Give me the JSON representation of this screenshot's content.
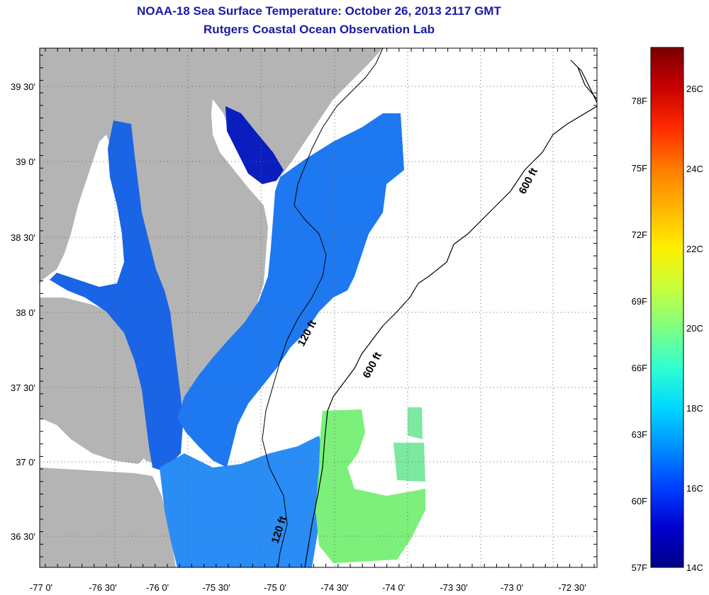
{
  "title": "NOAA-18 Sea Surface Temperature:  October 26, 2013 2117 GMT",
  "subtitle": "Rutgers Coastal Ocean Observation Lab",
  "map": {
    "lat_ticks": [
      "39 30'",
      "39 0'",
      "38 30'",
      "38 0'",
      "37 30'",
      "37 0'",
      "36 30'"
    ],
    "lon_ticks": [
      "-77 0'",
      "-76 30'",
      "-76 0'",
      "-75 30'",
      "-75 0'",
      "-74 30'",
      "-74 0'",
      "-73 30'",
      "-73 0'",
      "-72 30'"
    ],
    "contour_labels": [
      "600 ft",
      "120 ft",
      "600 ft",
      "120 ft"
    ],
    "land_color": "#b4b4b4",
    "no_data_color": "#ffffff"
  },
  "colorbar": {
    "fahrenheit": [
      "78F",
      "75F",
      "72F",
      "69F",
      "66F",
      "63F",
      "60F",
      "57F"
    ],
    "celsius": [
      "26C",
      "24C",
      "22C",
      "20C",
      "18C",
      "16C",
      "14C"
    ],
    "colors": [
      "#7a0000",
      "#c80000",
      "#ff2a00",
      "#ff7a00",
      "#ffb400",
      "#fff000",
      "#c8ff3a",
      "#80ff80",
      "#30ffd0",
      "#00d8ff",
      "#0090ff",
      "#0040ff",
      "#0000d0",
      "#00008a"
    ]
  }
}
